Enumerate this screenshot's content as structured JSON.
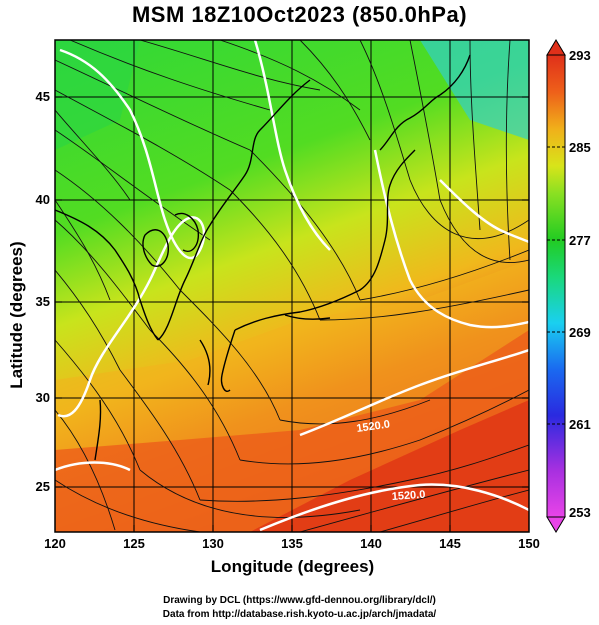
{
  "title": "MSM 18Z10Oct2023 (850.0hPa)",
  "y_axis": {
    "label": "Latitude  (degrees)",
    "ticks": [
      "45",
      "40",
      "35",
      "30",
      "25"
    ]
  },
  "x_axis": {
    "label": "Longitude (degrees)",
    "ticks": [
      "120",
      "125",
      "130",
      "135",
      "140",
      "145",
      "150"
    ]
  },
  "colorbar": {
    "ticks": [
      "293",
      "285",
      "277",
      "269",
      "261",
      "253"
    ]
  },
  "contour_labels": [
    "1520.0",
    "1520.0"
  ],
  "credits": {
    "line1": "Drawing by DCL (https://www.gfd-dennou.org/library/dcl/)",
    "line2": "Data from http://database.rish.kyoto-u.ac.jp/arch/jmadata/"
  },
  "colors": {
    "warm": "#e8401a",
    "mid": "#c8e61a",
    "cool": "#22cc33",
    "cold": "#22c8e0"
  }
}
